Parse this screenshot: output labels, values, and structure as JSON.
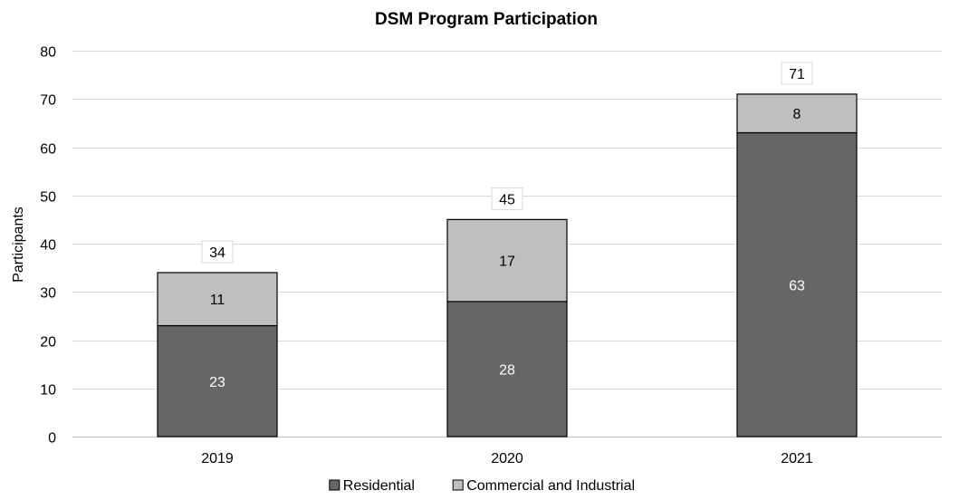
{
  "chart_data": {
    "type": "bar",
    "stacked": true,
    "title": "DSM Program Participation",
    "xlabel": "",
    "ylabel": "Participants",
    "ylim": [
      0,
      80
    ],
    "yticks": [
      0,
      10,
      20,
      30,
      40,
      50,
      60,
      70,
      80
    ],
    "grid": true,
    "legend_position": "bottom",
    "categories": [
      "2019",
      "2020",
      "2021"
    ],
    "series": [
      {
        "name": "Residential",
        "values": [
          23,
          28,
          63
        ],
        "color": "#666666",
        "label_color": "#ffffff"
      },
      {
        "name": "Commercial and Industrial",
        "values": [
          11,
          17,
          8
        ],
        "color": "#bfbfbf",
        "label_color": "#000000"
      }
    ],
    "totals": [
      34,
      45,
      71
    ]
  }
}
